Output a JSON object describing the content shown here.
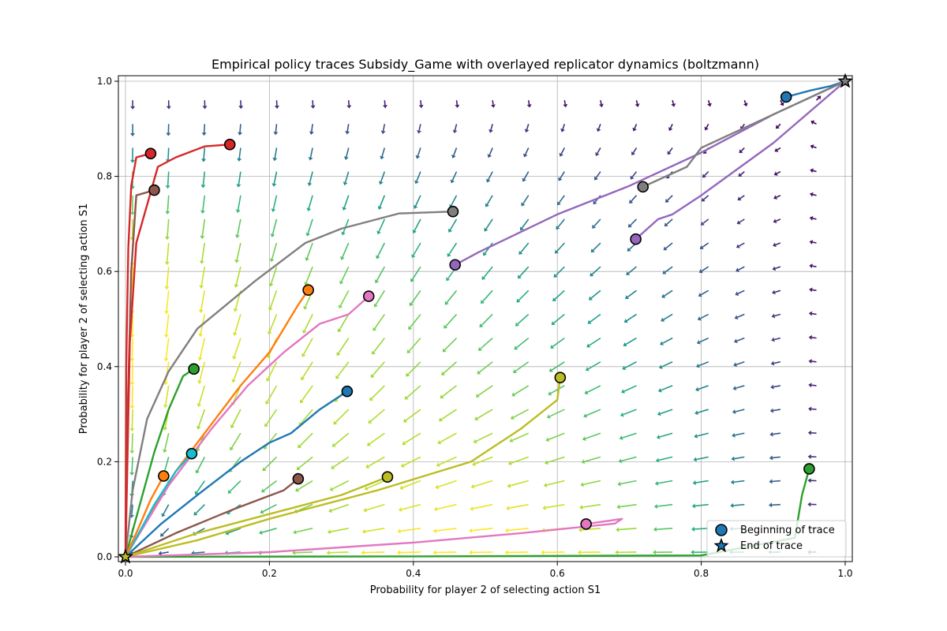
{
  "chart_data": {
    "type": "scatter",
    "title": "Empirical policy traces Subsidy_Game with overlayed replicator dynamics (boltzmann)",
    "xlabel": "Probability for player 2 of selecting action S1",
    "ylabel": "Probability for player 2 of selecting action S1",
    "xlim": [
      0,
      1
    ],
    "ylim": [
      0,
      1
    ],
    "x_ticks": [
      "0.0",
      "0.2",
      "0.4",
      "0.6",
      "0.8",
      "1.0"
    ],
    "y_ticks": [
      "0.0",
      "0.2",
      "0.4",
      "0.6",
      "0.8",
      "1.0"
    ],
    "grid": true,
    "legend": {
      "placement": "lower-right",
      "entries": [
        {
          "label": "Beginning of trace",
          "marker": "circle"
        },
        {
          "label": "End of trace",
          "marker": "star"
        }
      ]
    },
    "quiver": {
      "field": "replicator dynamics (boltzmann)",
      "grid_step": 0.05,
      "colormap": "viridis"
    },
    "traces": [
      {
        "color": "#1f77b4",
        "start": [
          0.308,
          0.348
        ],
        "end": [
          0,
          0
        ],
        "points": [
          [
            0.308,
            0.348
          ],
          [
            0.27,
            0.31
          ],
          [
            0.23,
            0.26
          ],
          [
            0.2,
            0.24
          ],
          [
            0.16,
            0.2
          ],
          [
            0.1,
            0.13
          ],
          [
            0.05,
            0.07
          ],
          [
            0,
            0
          ]
        ]
      },
      {
        "color": "#ff7f0e",
        "start": [
          0.254,
          0.561
        ],
        "end": [
          0,
          0
        ],
        "points": [
          [
            0.254,
            0.561
          ],
          [
            0.24,
            0.53
          ],
          [
            0.22,
            0.48
          ],
          [
            0.2,
            0.43
          ],
          [
            0.16,
            0.36
          ],
          [
            0.12,
            0.28
          ],
          [
            0.07,
            0.18
          ],
          [
            0.03,
            0.08
          ],
          [
            0,
            0
          ]
        ]
      },
      {
        "color": "#2ca02c",
        "start": [
          0.095,
          0.395
        ],
        "end": [
          0,
          0
        ],
        "points": [
          [
            0.095,
            0.395
          ],
          [
            0.08,
            0.38
          ],
          [
            0.06,
            0.31
          ],
          [
            0.04,
            0.22
          ],
          [
            0.02,
            0.11
          ],
          [
            0,
            0
          ]
        ]
      },
      {
        "color": "#d62728",
        "start": [
          0.035,
          0.848
        ],
        "end": [
          0,
          0
        ],
        "points": [
          [
            0.035,
            0.848
          ],
          [
            0.015,
            0.84
          ],
          [
            0.008,
            0.78
          ],
          [
            0.004,
            0.65
          ],
          [
            0.001,
            0.4
          ],
          [
            0,
            0
          ]
        ]
      },
      {
        "color": "#9467bd",
        "start": [
          0.458,
          0.614
        ],
        "end": [
          1,
          1
        ],
        "points": [
          [
            0.458,
            0.614
          ],
          [
            0.49,
            0.64
          ],
          [
            0.6,
            0.72
          ],
          [
            0.7,
            0.78
          ],
          [
            0.8,
            0.85
          ],
          [
            0.9,
            0.93
          ],
          [
            1,
            1
          ]
        ]
      },
      {
        "color": "#8c564b",
        "start": [
          0.04,
          0.771
        ],
        "end": [
          0,
          0
        ],
        "points": [
          [
            0.04,
            0.771
          ],
          [
            0.015,
            0.76
          ],
          [
            0.008,
            0.6
          ],
          [
            0.003,
            0.3
          ],
          [
            0,
            0
          ]
        ]
      },
      {
        "color": "#e377c2",
        "start": [
          0.338,
          0.548
        ],
        "end": [
          0,
          0
        ],
        "points": [
          [
            0.338,
            0.548
          ],
          [
            0.31,
            0.51
          ],
          [
            0.27,
            0.49
          ],
          [
            0.22,
            0.43
          ],
          [
            0.17,
            0.36
          ],
          [
            0.12,
            0.27
          ],
          [
            0.06,
            0.15
          ],
          [
            0,
            0
          ]
        ]
      },
      {
        "color": "#7f7f7f",
        "start": [
          0.455,
          0.726
        ],
        "end": [
          0,
          0
        ],
        "points": [
          [
            0.455,
            0.726
          ],
          [
            0.38,
            0.722
          ],
          [
            0.3,
            0.69
          ],
          [
            0.25,
            0.66
          ],
          [
            0.18,
            0.58
          ],
          [
            0.1,
            0.48
          ],
          [
            0.06,
            0.39
          ],
          [
            0.03,
            0.29
          ],
          [
            0.01,
            0.14
          ],
          [
            0,
            0
          ]
        ]
      },
      {
        "color": "#bcbd22",
        "start": [
          0.604,
          0.377
        ],
        "end": [
          0,
          0
        ],
        "points": [
          [
            0.604,
            0.377
          ],
          [
            0.6,
            0.33
          ],
          [
            0.55,
            0.27
          ],
          [
            0.48,
            0.2
          ],
          [
            0.35,
            0.14
          ],
          [
            0.2,
            0.08
          ],
          [
            0.1,
            0.035
          ],
          [
            0,
            0
          ]
        ]
      },
      {
        "color": "#17becf",
        "start": [
          0.092,
          0.217
        ],
        "end": [
          0,
          0
        ],
        "points": [
          [
            0.092,
            0.217
          ],
          [
            0.07,
            0.18
          ],
          [
            0.04,
            0.11
          ],
          [
            0.015,
            0.04
          ],
          [
            0,
            0
          ]
        ]
      },
      {
        "color": "#1f77b4",
        "start": [
          0.918,
          0.967
        ],
        "end": [
          1,
          1
        ],
        "points": [
          [
            0.918,
            0.967
          ],
          [
            0.95,
            0.98
          ],
          [
            0.98,
            0.99
          ],
          [
            1,
            1
          ]
        ]
      },
      {
        "color": "#ff7f0e",
        "start": [
          0.053,
          0.17
        ],
        "end": [
          0,
          0
        ],
        "points": [
          [
            0.053,
            0.17
          ],
          [
            0.035,
            0.12
          ],
          [
            0.015,
            0.05
          ],
          [
            0,
            0
          ]
        ]
      },
      {
        "color": "#2ca02c",
        "start": [
          0.95,
          0.185
        ],
        "end": [
          0,
          0
        ],
        "points": [
          [
            0.95,
            0.185
          ],
          [
            0.94,
            0.13
          ],
          [
            0.93,
            0.04
          ],
          [
            0.8,
            0.003
          ],
          [
            0.4,
            0.001
          ],
          [
            0,
            0
          ]
        ]
      },
      {
        "color": "#d62728",
        "start": [
          0.145,
          0.867
        ],
        "end": [
          0,
          0
        ],
        "points": [
          [
            0.145,
            0.867
          ],
          [
            0.11,
            0.863
          ],
          [
            0.07,
            0.84
          ],
          [
            0.045,
            0.82
          ],
          [
            0.03,
            0.74
          ],
          [
            0.015,
            0.66
          ],
          [
            0.006,
            0.45
          ],
          [
            0,
            0
          ]
        ]
      },
      {
        "color": "#9467bd",
        "start": [
          0.709,
          0.668
        ],
        "end": [
          1,
          1
        ],
        "points": [
          [
            0.709,
            0.668
          ],
          [
            0.74,
            0.71
          ],
          [
            0.76,
            0.72
          ],
          [
            0.8,
            0.76
          ],
          [
            0.9,
            0.87
          ],
          [
            1,
            1
          ]
        ]
      },
      {
        "color": "#8c564b",
        "start": [
          0.24,
          0.164
        ],
        "end": [
          0,
          0
        ],
        "points": [
          [
            0.24,
            0.164
          ],
          [
            0.22,
            0.14
          ],
          [
            0.15,
            0.1
          ],
          [
            0.07,
            0.05
          ],
          [
            0,
            0
          ]
        ]
      },
      {
        "color": "#e377c2",
        "start": [
          0.64,
          0.069
        ],
        "end": [
          0,
          0
        ],
        "points": [
          [
            0.64,
            0.069
          ],
          [
            0.69,
            0.08
          ],
          [
            0.68,
            0.07
          ],
          [
            0.55,
            0.05
          ],
          [
            0.4,
            0.03
          ],
          [
            0.2,
            0.01
          ],
          [
            0,
            0
          ]
        ]
      },
      {
        "color": "#7f7f7f",
        "start": [
          0.719,
          0.778
        ],
        "end": [
          1,
          1
        ],
        "points": [
          [
            0.719,
            0.778
          ],
          [
            0.78,
            0.82
          ],
          [
            0.8,
            0.86
          ],
          [
            0.9,
            0.93
          ],
          [
            1,
            1
          ]
        ]
      },
      {
        "color": "#bcbd22",
        "start": [
          0.364,
          0.168
        ],
        "end": [
          0,
          0
        ],
        "points": [
          [
            0.364,
            0.168
          ],
          [
            0.3,
            0.13
          ],
          [
            0.2,
            0.09
          ],
          [
            0.1,
            0.05
          ],
          [
            0,
            0
          ]
        ]
      }
    ]
  }
}
